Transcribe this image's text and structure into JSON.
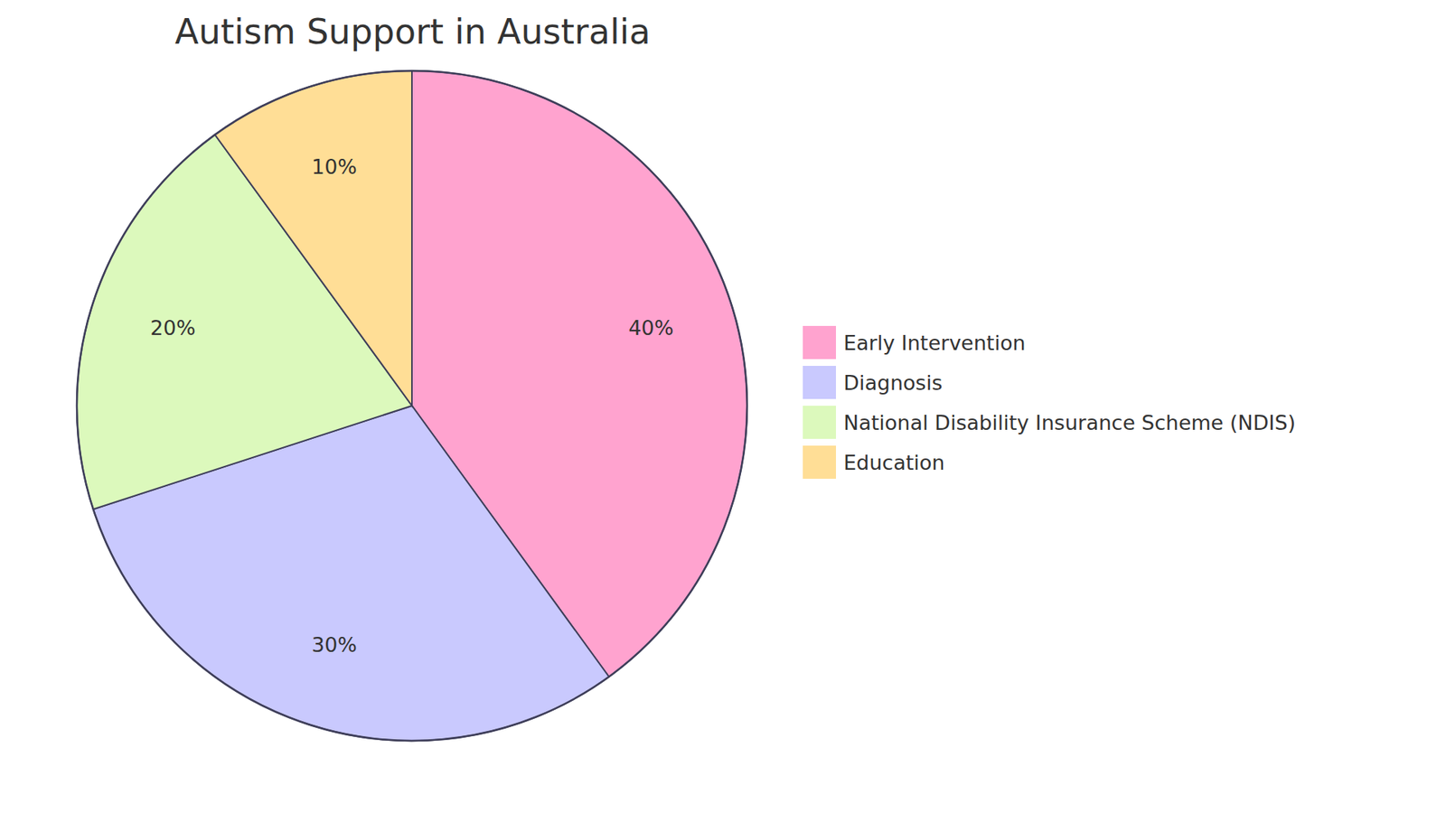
{
  "chart_data": {
    "type": "pie",
    "title": "Autism Support in Australia",
    "categories": [
      "Early Intervention",
      "Diagnosis",
      "National Disability Insurance Scheme (NDIS)",
      "Education"
    ],
    "values": [
      40,
      30,
      20,
      10
    ],
    "value_labels": [
      "40%",
      "30%",
      "20%",
      "10%"
    ],
    "colors": [
      "#ffa3cf",
      "#c9c9fe",
      "#dcf9bc",
      "#ffde96"
    ],
    "data_labels": true,
    "legend": "right"
  }
}
